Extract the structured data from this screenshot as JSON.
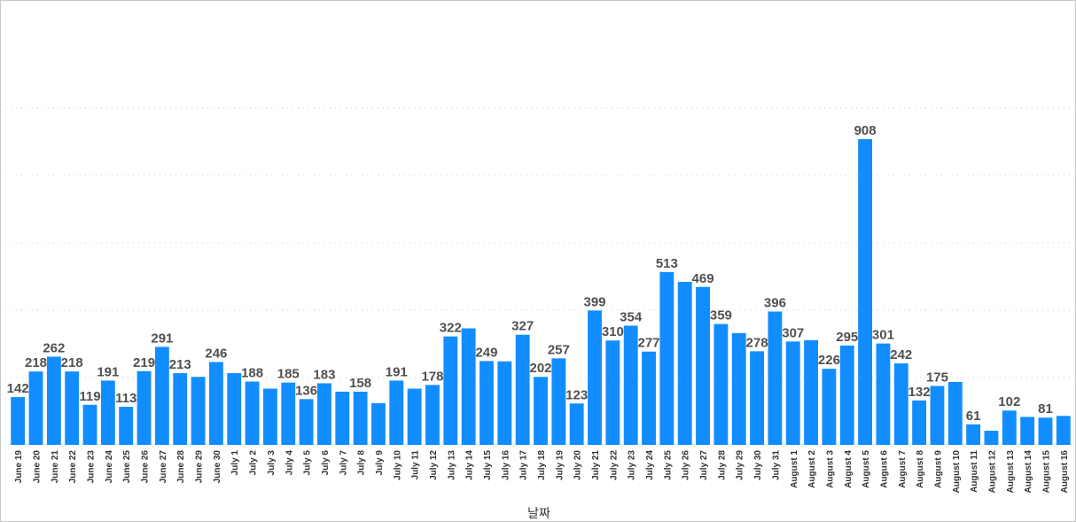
{
  "chart_data": {
    "type": "bar",
    "title": "",
    "xlabel": "날짜",
    "ylabel": "",
    "ylim": [
      0,
      1000
    ],
    "grid": true,
    "bar_color": "#118dff",
    "categories": [
      "June 19",
      "June 20",
      "June 21",
      "June 22",
      "June 23",
      "June 24",
      "June 25",
      "June 26",
      "June 27",
      "June 28",
      "June 29",
      "June 30",
      "July 1",
      "July 2",
      "July 3",
      "July 4",
      "July 5",
      "July 6",
      "July 7",
      "July 8",
      "July 9",
      "July 10",
      "July 11",
      "July 12",
      "July 13",
      "July 14",
      "July 15",
      "July 16",
      "July 17",
      "July 18",
      "July 19",
      "July 20",
      "July 21",
      "July 22",
      "July 23",
      "July 24",
      "July 25",
      "July 26",
      "July 27",
      "July 28",
      "July 29",
      "July 30",
      "July 31",
      "August 1",
      "August 2",
      "August 3",
      "August 4",
      "August 5",
      "August 6",
      "August 7",
      "August 8",
      "August 9",
      "August 10",
      "August 11",
      "August 12",
      "August 13",
      "August 14",
      "August 15",
      "August 16"
    ],
    "values": [
      142,
      218,
      262,
      218,
      119,
      191,
      113,
      219,
      291,
      213,
      202,
      246,
      213,
      188,
      167,
      185,
      136,
      183,
      158,
      158,
      124,
      191,
      167,
      178,
      322,
      346,
      249,
      248,
      327,
      202,
      257,
      123,
      399,
      310,
      354,
      277,
      513,
      484,
      469,
      359,
      332,
      278,
      396,
      307,
      311,
      226,
      295,
      908,
      301,
      242,
      132,
      175,
      187,
      61,
      42,
      102,
      83,
      81,
      86
    ],
    "labels": [
      "142",
      "218",
      "262",
      "218",
      "119",
      "191",
      "113",
      "219",
      "291",
      "213",
      "",
      "246",
      "",
      "188",
      "",
      "185",
      "136",
      "183",
      "",
      "158",
      "",
      "191",
      "",
      "178",
      "322",
      "",
      "249",
      "",
      "327",
      "202",
      "257",
      "123",
      "399",
      "310",
      "354",
      "277",
      "513",
      "",
      "469",
      "359",
      "",
      "278",
      "396",
      "307",
      "",
      "226",
      "295",
      "908",
      "301",
      "242",
      "132",
      "175",
      "",
      "61",
      "",
      "102",
      "",
      "81",
      ""
    ]
  }
}
